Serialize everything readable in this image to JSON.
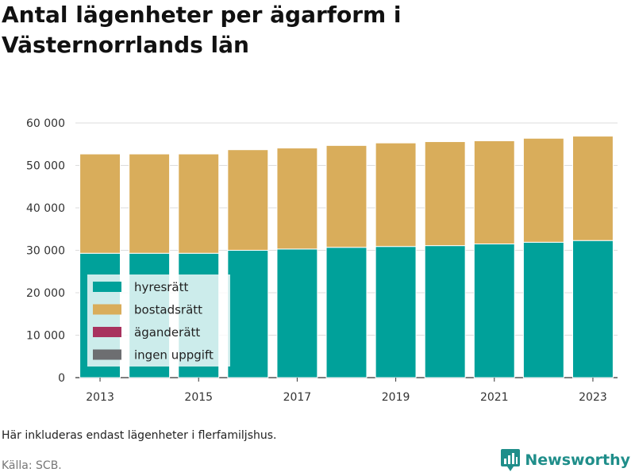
{
  "title": "Antal lägenheter per ägarform i Västernorrlands län",
  "footnote": "Här inkluderas endast lägenheter i flerfamiljshus.",
  "source": "Källa: SCB.",
  "brand": {
    "name": "Newsworthy",
    "icon": "newsworthy-logo-icon"
  },
  "chart_data": {
    "type": "bar",
    "stacked": true,
    "categories": [
      "2013",
      "2014",
      "2015",
      "2016",
      "2017",
      "2018",
      "2019",
      "2020",
      "2021",
      "2022",
      "2023"
    ],
    "x_tick_labels": [
      "2013",
      "2015",
      "2017",
      "2019",
      "2021",
      "2023"
    ],
    "series": [
      {
        "name": "hyresrätt",
        "color": "#00a19a",
        "values": [
          29300,
          29300,
          29300,
          30000,
          30300,
          30700,
          30900,
          31100,
          31500,
          31900,
          32300
        ]
      },
      {
        "name": "bostadsrätt",
        "color": "#d9ad5b",
        "values": [
          23400,
          23400,
          23400,
          23700,
          23800,
          24000,
          24400,
          24500,
          24300,
          24500,
          24600
        ]
      },
      {
        "name": "äganderätt",
        "color": "#a8325e",
        "values": [
          0,
          0,
          0,
          0,
          0,
          0,
          0,
          0,
          0,
          0,
          0
        ]
      },
      {
        "name": "ingen uppgift",
        "color": "#6d6e71",
        "values": [
          0,
          0,
          0,
          0,
          0,
          0,
          0,
          0,
          0,
          0,
          0
        ]
      }
    ],
    "ylim": [
      0,
      60000
    ],
    "y_ticks": [
      0,
      10000,
      20000,
      30000,
      40000,
      50000,
      60000
    ],
    "y_tick_labels": [
      "0",
      "10 000",
      "20 000",
      "30 000",
      "40 000",
      "50 000",
      "60 000"
    ],
    "grid": true,
    "legend_position": "bottom-left inside plot"
  }
}
